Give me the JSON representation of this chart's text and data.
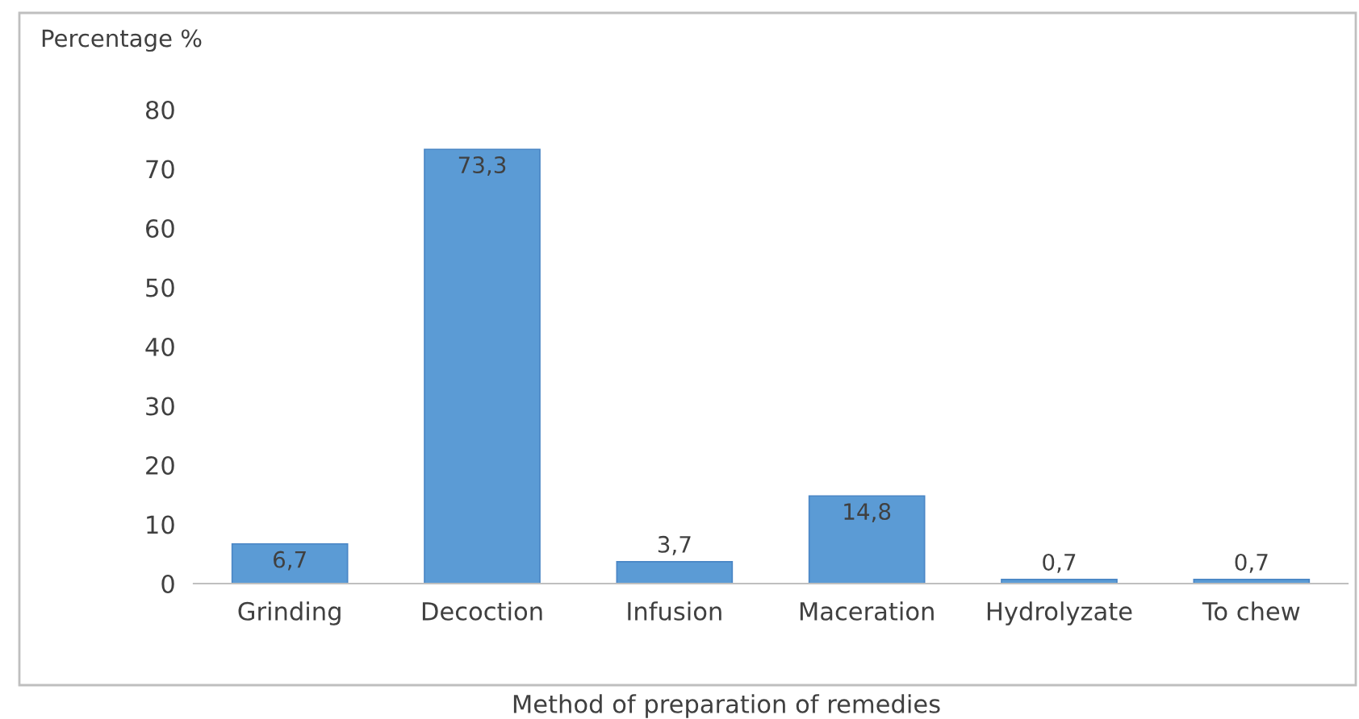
{
  "chart_data": {
    "type": "bar",
    "ylabel": "Percentage %",
    "xlabel": "Method of preparation of remedies",
    "categories": [
      "Grinding",
      "Decoction",
      "Infusion",
      "Maceration",
      "Hydrolyzate",
      "To chew"
    ],
    "values": [
      6.7,
      73.3,
      3.7,
      14.8,
      0.7,
      0.7
    ],
    "value_labels": [
      "6,7",
      "73,3",
      "3,7",
      "14,8",
      "0,7",
      "0,7"
    ],
    "color": "#5b9bd5",
    "ylim": [
      0,
      80
    ],
    "yticks": [
      0,
      10,
      20,
      30,
      40,
      50,
      60,
      70,
      80
    ],
    "grid": false,
    "legend": false
  }
}
